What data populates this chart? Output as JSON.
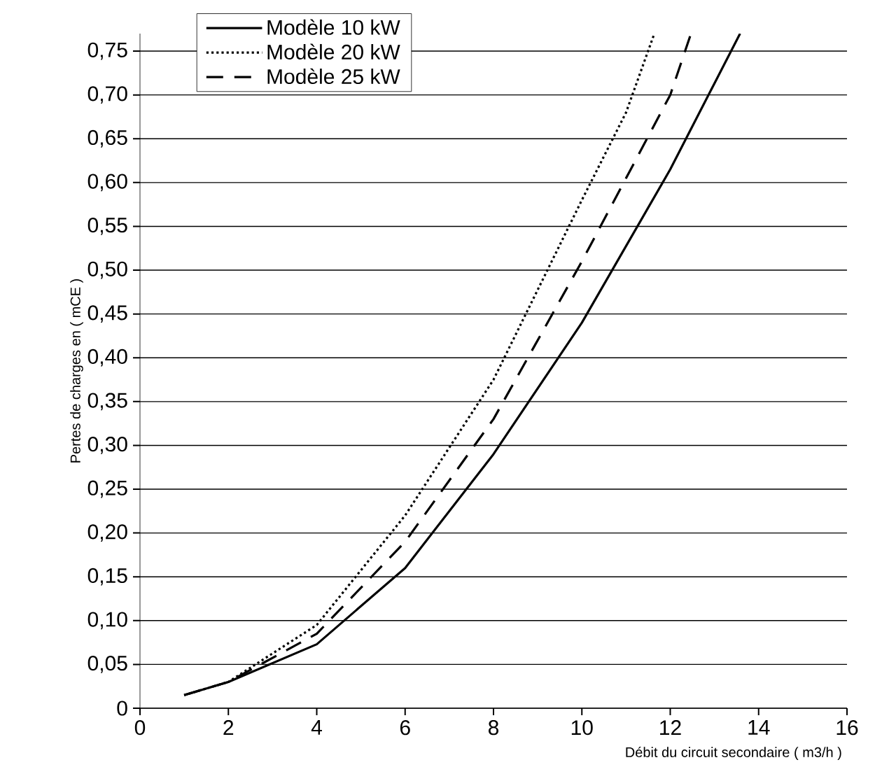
{
  "chart_data": {
    "type": "line",
    "xlabel": "Débit du circuit secondaire ( m3/h )",
    "ylabel": "Pertes de charges en ( mCE )",
    "xlim": [
      0,
      16
    ],
    "ylim": [
      0,
      0.77
    ],
    "xticks": [
      0,
      2,
      4,
      6,
      8,
      10,
      12,
      14,
      16
    ],
    "yticks": [
      0,
      {
        "value": 0.05,
        "label": "0,05"
      },
      {
        "value": 0.1,
        "label": "0,10"
      },
      {
        "value": 0.15,
        "label": "0,15"
      },
      {
        "value": 0.2,
        "label": "0,20"
      },
      {
        "value": 0.25,
        "label": "0,25"
      },
      {
        "value": 0.3,
        "label": "0,30"
      },
      {
        "value": 0.35,
        "label": "0,35"
      },
      {
        "value": 0.4,
        "label": "0,40"
      },
      {
        "value": 0.45,
        "label": "0,45"
      },
      {
        "value": 0.5,
        "label": "0,50"
      },
      {
        "value": 0.55,
        "label": "0,55"
      },
      {
        "value": 0.6,
        "label": "0,60"
      },
      {
        "value": 0.65,
        "label": "0,65"
      },
      {
        "value": 0.7,
        "label": "0,70"
      },
      {
        "value": 0.75,
        "label": "0,75"
      }
    ],
    "grid": "y",
    "legend": "top left",
    "marker": "none",
    "series": [
      {
        "name": "Modèle 10 kW",
        "color": "#000000",
        "line_style": "solid",
        "x": [
          1,
          2,
          4,
          6,
          8,
          10,
          12,
          13.58
        ],
        "values": [
          0.015,
          0.03,
          0.073,
          0.16,
          0.29,
          0.44,
          0.615,
          0.77
        ]
      },
      {
        "name": "Modèle 20 kW",
        "color": "#000000",
        "line_style": "dotted",
        "x": [
          1,
          2,
          4,
          6,
          8,
          10,
          11,
          11.64
        ],
        "values": [
          0.015,
          0.03,
          0.095,
          0.22,
          0.375,
          0.58,
          0.68,
          0.77
        ]
      },
      {
        "name": "Modèle 25 kW",
        "color": "#000000",
        "line_style": "dashed",
        "x": [
          1,
          2,
          4,
          6,
          8,
          10,
          12,
          12.47
        ],
        "values": [
          0.015,
          0.03,
          0.085,
          0.19,
          0.33,
          0.51,
          0.7,
          0.77
        ]
      }
    ]
  }
}
